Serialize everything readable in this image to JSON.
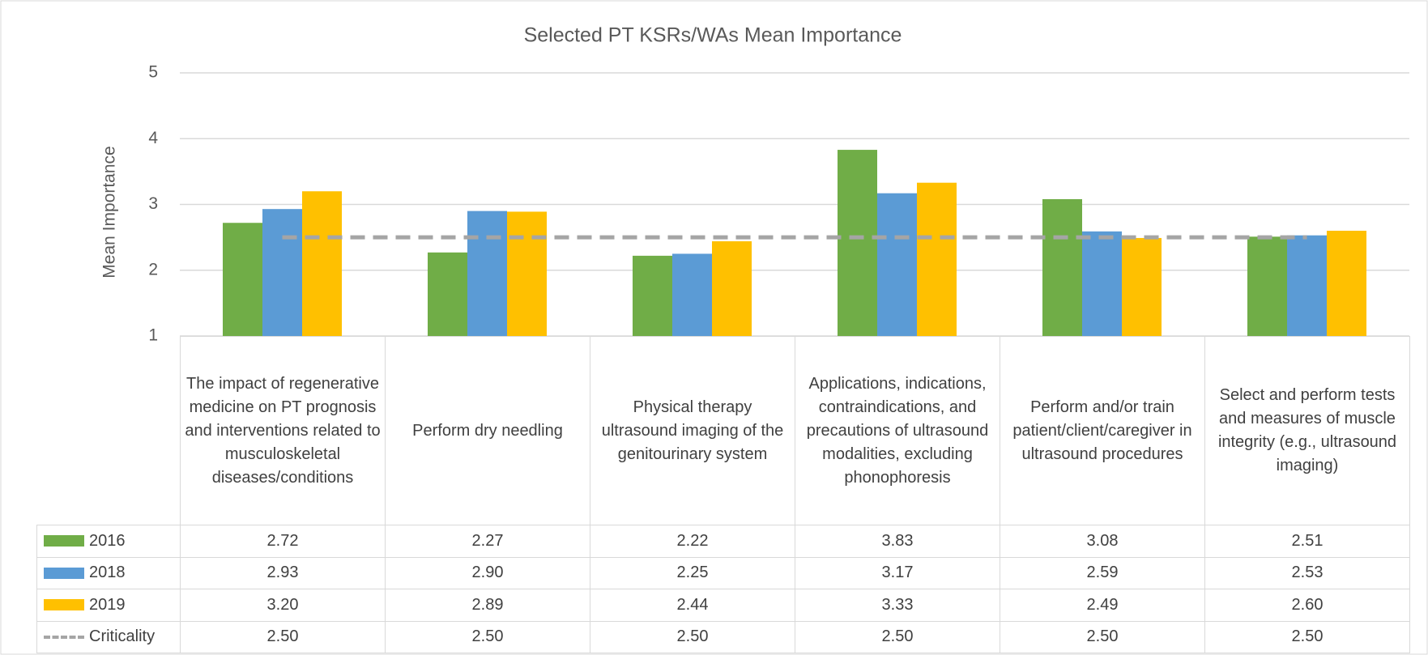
{
  "chart_data": {
    "type": "bar",
    "title": "Selected PT KSRs/WAs Mean Importance",
    "y_label": "Mean Importance",
    "categories": [
      "The impact of regenerative medicine on PT prognosis and interventions related to musculoskeletal diseases/conditions",
      "Perform dry needling",
      "Physical therapy ultrasound imaging of the genitourinary system",
      "Applications, indications, contraindications, and precautions of ultrasound modalities, excluding phonophoresis",
      "Perform and/or train patient/client/caregiver in ultrasound procedures",
      "Select and perform tests and measures of muscle integrity (e.g., ultrasound imaging)"
    ],
    "series": [
      {
        "name": "2016",
        "type": "bar",
        "color": "#70ad47",
        "values": [
          2.72,
          2.27,
          2.22,
          3.83,
          3.08,
          2.51
        ],
        "value_labels": [
          "2.72",
          "2.27",
          "2.22",
          "3.83",
          "3.08",
          "2.51"
        ]
      },
      {
        "name": "2018",
        "type": "bar",
        "color": "#5b9bd5",
        "values": [
          2.93,
          2.9,
          2.25,
          3.17,
          2.59,
          2.53
        ],
        "value_labels": [
          "2.93",
          "2.90",
          "2.25",
          "3.17",
          "2.59",
          "2.53"
        ]
      },
      {
        "name": "2019",
        "type": "bar",
        "color": "#ffc000",
        "values": [
          3.2,
          2.89,
          2.44,
          3.33,
          2.49,
          2.6
        ],
        "value_labels": [
          "3.20",
          "2.89",
          "2.44",
          "3.33",
          "2.49",
          "2.60"
        ]
      },
      {
        "name": "Criticality",
        "type": "line",
        "dashed": true,
        "color": "#a5a5a5",
        "values": [
          2.5,
          2.5,
          2.5,
          2.5,
          2.5,
          2.5
        ],
        "value_labels": [
          "2.50",
          "2.50",
          "2.50",
          "2.50",
          "2.50",
          "2.50"
        ]
      }
    ],
    "ylim": [
      1,
      5
    ],
    "yticks": [
      1,
      2,
      3,
      4,
      5
    ],
    "grid": true,
    "data_table": true
  }
}
